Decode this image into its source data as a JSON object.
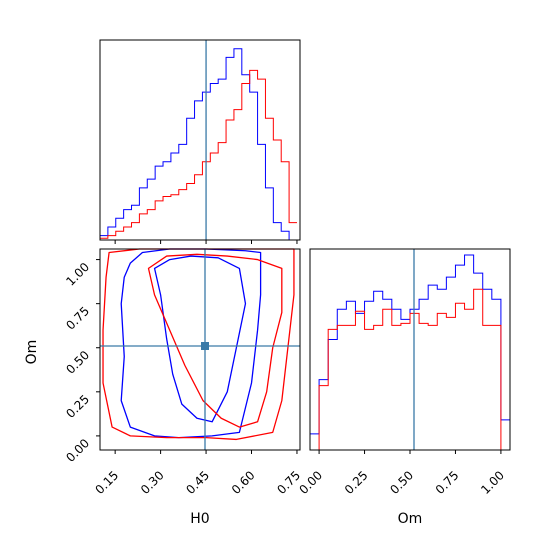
{
  "figure": {
    "xlabel_h0": "H0",
    "xlabel_om": "Om",
    "ylabel_om": "Om"
  },
  "colors": {
    "series_a": "#0000ff",
    "series_b": "#ff0000",
    "truth": "#3a7aa7"
  },
  "chart_data": [
    {
      "type": "histogram",
      "panel": "H0 marginal (top-left)",
      "xlim": [
        0.1,
        0.76
      ],
      "truth": 0.45,
      "bin_edges": [
        0.1,
        0.126,
        0.152,
        0.178,
        0.204,
        0.23,
        0.256,
        0.282,
        0.308,
        0.334,
        0.36,
        0.386,
        0.412,
        0.438,
        0.464,
        0.49,
        0.516,
        0.542,
        0.568,
        0.594,
        0.62,
        0.646,
        0.672,
        0.698,
        0.724,
        0.75
      ],
      "series": [
        {
          "color": "blue",
          "values": [
            0.5,
            1.5,
            2.5,
            3.5,
            4,
            6,
            7,
            8.5,
            9,
            10,
            11,
            14,
            16,
            17,
            18,
            18.5,
            21,
            22,
            19,
            17,
            11,
            6,
            2,
            1,
            0
          ]
        },
        {
          "color": "red",
          "values": [
            0.2,
            0.5,
            1,
            1.5,
            2,
            3,
            3.5,
            4.5,
            5,
            5.2,
            5.8,
            6.5,
            7.5,
            9,
            10,
            11.2,
            13.8,
            15,
            18,
            19.5,
            18.5,
            14,
            11.5,
            9,
            2
          ]
        }
      ]
    },
    {
      "type": "contour",
      "panel": "H0 vs Om joint (bottom-left)",
      "xlim": [
        0.1,
        0.76
      ],
      "ylim": [
        -0.08,
        1.06
      ],
      "x_ticks": [
        "0.15",
        "0.30",
        "0.45",
        "0.60",
        "0.75"
      ],
      "y_ticks": [
        "0.00",
        "0.25",
        "0.50",
        "0.75",
        "1.00"
      ],
      "truth": {
        "x": 0.45,
        "y": 0.51
      },
      "series": [
        {
          "color": "blue",
          "level": "inner",
          "points": [
            [
              0.28,
              0.95
            ],
            [
              0.33,
              1.0
            ],
            [
              0.4,
              1.02
            ],
            [
              0.49,
              1.01
            ],
            [
              0.56,
              0.95
            ],
            [
              0.58,
              0.75
            ],
            [
              0.55,
              0.5
            ],
            [
              0.52,
              0.25
            ],
            [
              0.47,
              0.08
            ],
            [
              0.42,
              0.1
            ],
            [
              0.37,
              0.18
            ],
            [
              0.34,
              0.35
            ],
            [
              0.32,
              0.55
            ],
            [
              0.3,
              0.8
            ]
          ]
        },
        {
          "color": "blue",
          "level": "outer",
          "points": [
            [
              0.2,
              0.98
            ],
            [
              0.24,
              1.04
            ],
            [
              0.33,
              1.06
            ],
            [
              0.45,
              1.06
            ],
            [
              0.58,
              1.05
            ],
            [
              0.63,
              1.04
            ],
            [
              0.63,
              0.8
            ],
            [
              0.62,
              0.6
            ],
            [
              0.6,
              0.3
            ],
            [
              0.56,
              0.02
            ],
            [
              0.47,
              0.0
            ],
            [
              0.36,
              -0.01
            ],
            [
              0.28,
              0.0
            ],
            [
              0.2,
              0.05
            ],
            [
              0.17,
              0.2
            ],
            [
              0.18,
              0.45
            ],
            [
              0.17,
              0.75
            ],
            [
              0.18,
              0.9
            ]
          ]
        },
        {
          "color": "red",
          "level": "inner",
          "points": [
            [
              0.26,
              0.95
            ],
            [
              0.32,
              1.02
            ],
            [
              0.42,
              1.03
            ],
            [
              0.52,
              1.02
            ],
            [
              0.62,
              1.0
            ],
            [
              0.7,
              0.95
            ],
            [
              0.7,
              0.7
            ],
            [
              0.67,
              0.5
            ],
            [
              0.65,
              0.25
            ],
            [
              0.62,
              0.08
            ],
            [
              0.56,
              0.05
            ],
            [
              0.5,
              0.1
            ],
            [
              0.44,
              0.2
            ],
            [
              0.38,
              0.4
            ],
            [
              0.33,
              0.6
            ],
            [
              0.28,
              0.8
            ]
          ]
        },
        {
          "color": "red",
          "level": "outer",
          "points": [
            [
              0.13,
              1.04
            ],
            [
              0.23,
              1.06
            ],
            [
              0.4,
              1.06
            ],
            [
              0.55,
              1.06
            ],
            [
              0.68,
              1.06
            ],
            [
              0.74,
              1.06
            ],
            [
              0.74,
              0.8
            ],
            [
              0.72,
              0.5
            ],
            [
              0.7,
              0.2
            ],
            [
              0.67,
              0.02
            ],
            [
              0.55,
              -0.02
            ],
            [
              0.45,
              -0.01
            ],
            [
              0.32,
              -0.01
            ],
            [
              0.2,
              0.0
            ],
            [
              0.14,
              0.05
            ],
            [
              0.11,
              0.3
            ],
            [
              0.11,
              0.6
            ],
            [
              0.12,
              0.9
            ]
          ]
        }
      ]
    },
    {
      "type": "histogram",
      "panel": "Om marginal (bottom-right)",
      "xlim": [
        -0.05,
        1.05
      ],
      "x_ticks": [
        "0.00",
        "0.25",
        "0.50",
        "0.75",
        "1.00"
      ],
      "truth": 0.51,
      "bin_edges": [
        -0.05,
        0.0,
        0.05,
        0.1,
        0.15,
        0.2,
        0.25,
        0.3,
        0.35,
        0.4,
        0.45,
        0.5,
        0.55,
        0.6,
        0.65,
        0.7,
        0.75,
        0.8,
        0.85,
        0.9,
        0.95,
        1.0,
        1.05
      ],
      "series": [
        {
          "color": "blue",
          "values": [
            0.08,
            0.35,
            0.55,
            0.7,
            0.74,
            0.68,
            0.74,
            0.79,
            0.75,
            0.7,
            0.65,
            0.7,
            0.75,
            0.82,
            0.8,
            0.86,
            0.92,
            0.97,
            0.88,
            0.8,
            0.75,
            0.15
          ]
        },
        {
          "color": "red",
          "values": [
            0.0,
            0.32,
            0.6,
            0.62,
            0.62,
            0.69,
            0.6,
            0.62,
            0.7,
            0.62,
            0.63,
            0.68,
            0.63,
            0.62,
            0.68,
            0.66,
            0.73,
            0.7,
            0.8,
            0.62,
            0.62,
            0.0
          ]
        }
      ]
    }
  ]
}
